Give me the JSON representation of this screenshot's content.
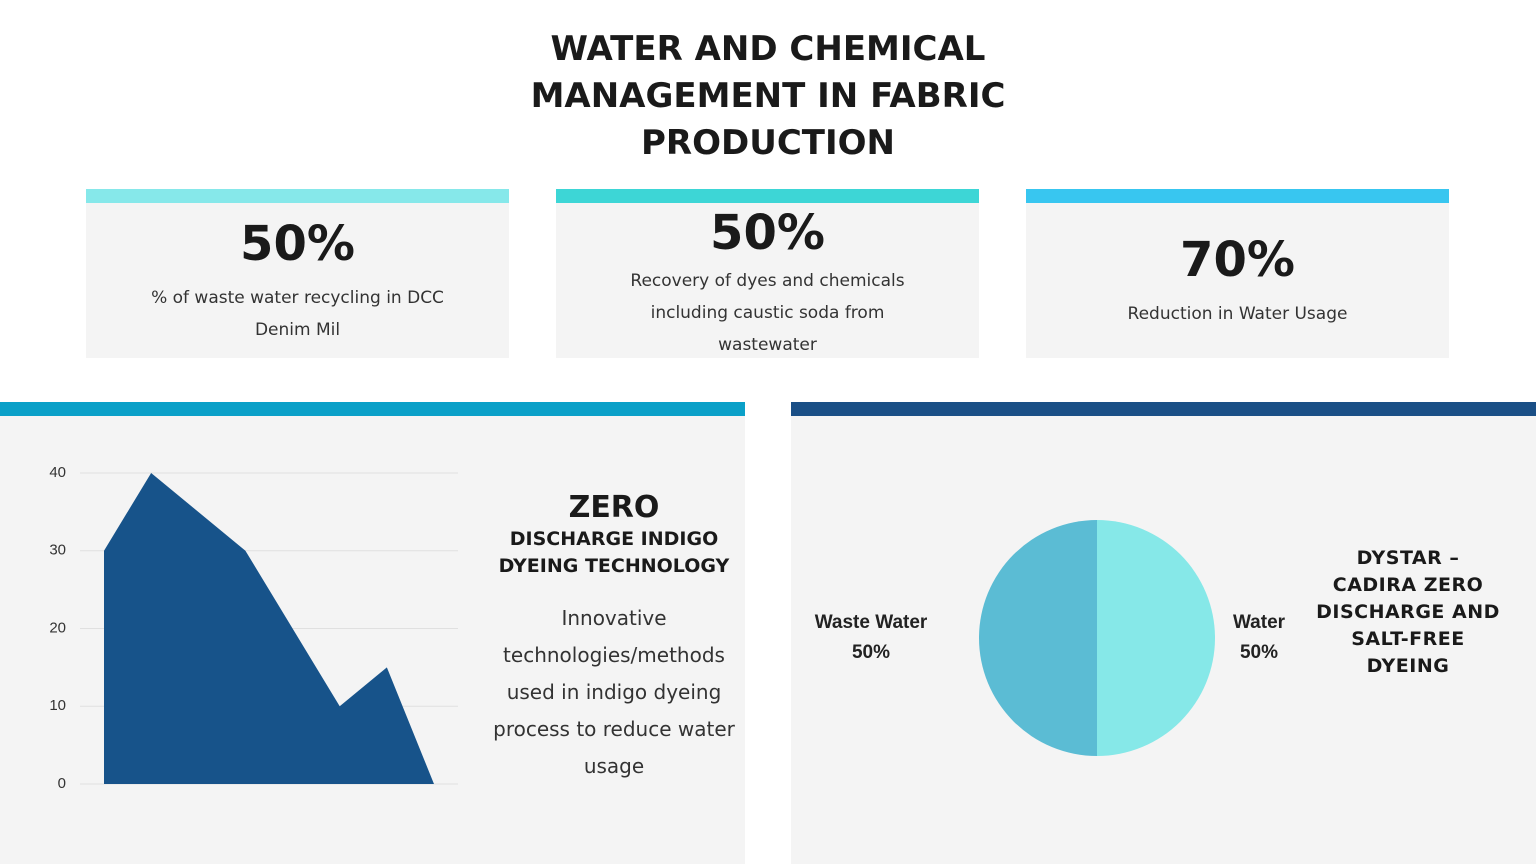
{
  "header": {
    "title": "WATER AND CHEMICAL MANAGEMENT IN FABRIC PRODUCTION"
  },
  "stats": [
    {
      "value": "50%",
      "text": "% of waste water recycling in DCC Denim Mil"
    },
    {
      "value": "50%",
      "text": "Recovery of dyes and chemicals including caustic soda from wastewater"
    },
    {
      "value": "70%",
      "text": "Reduction in Water Usage"
    }
  ],
  "panels": [
    {
      "title": "ZERO",
      "subtitle": "DISCHARGE INDIGO DYEING TECHNOLOGY",
      "text": "Innovative technologies/methods used in indigo dyeing process to reduce water usage"
    },
    {
      "title": "DYSTAR – CADIRA ZERO DISCHARGE AND SALT-FREE DYEING"
    }
  ],
  "chart_data": [
    {
      "type": "area",
      "categories": [
        null,
        null,
        null,
        null,
        null,
        null,
        null,
        null
      ],
      "values": [
        30,
        40,
        35,
        30,
        20,
        10,
        15,
        0
      ],
      "color": "#17538a",
      "ylim": [
        0,
        40
      ],
      "yticks": [
        0,
        10,
        20,
        30,
        40
      ],
      "grid": true
    },
    {
      "type": "pie",
      "categories": [
        "Waste Water",
        "Water"
      ],
      "values": [
        50,
        50
      ],
      "value_labels": [
        "50%",
        "50%"
      ],
      "colors": [
        "#5bbcd4",
        "#86e8e8"
      ]
    }
  ]
}
